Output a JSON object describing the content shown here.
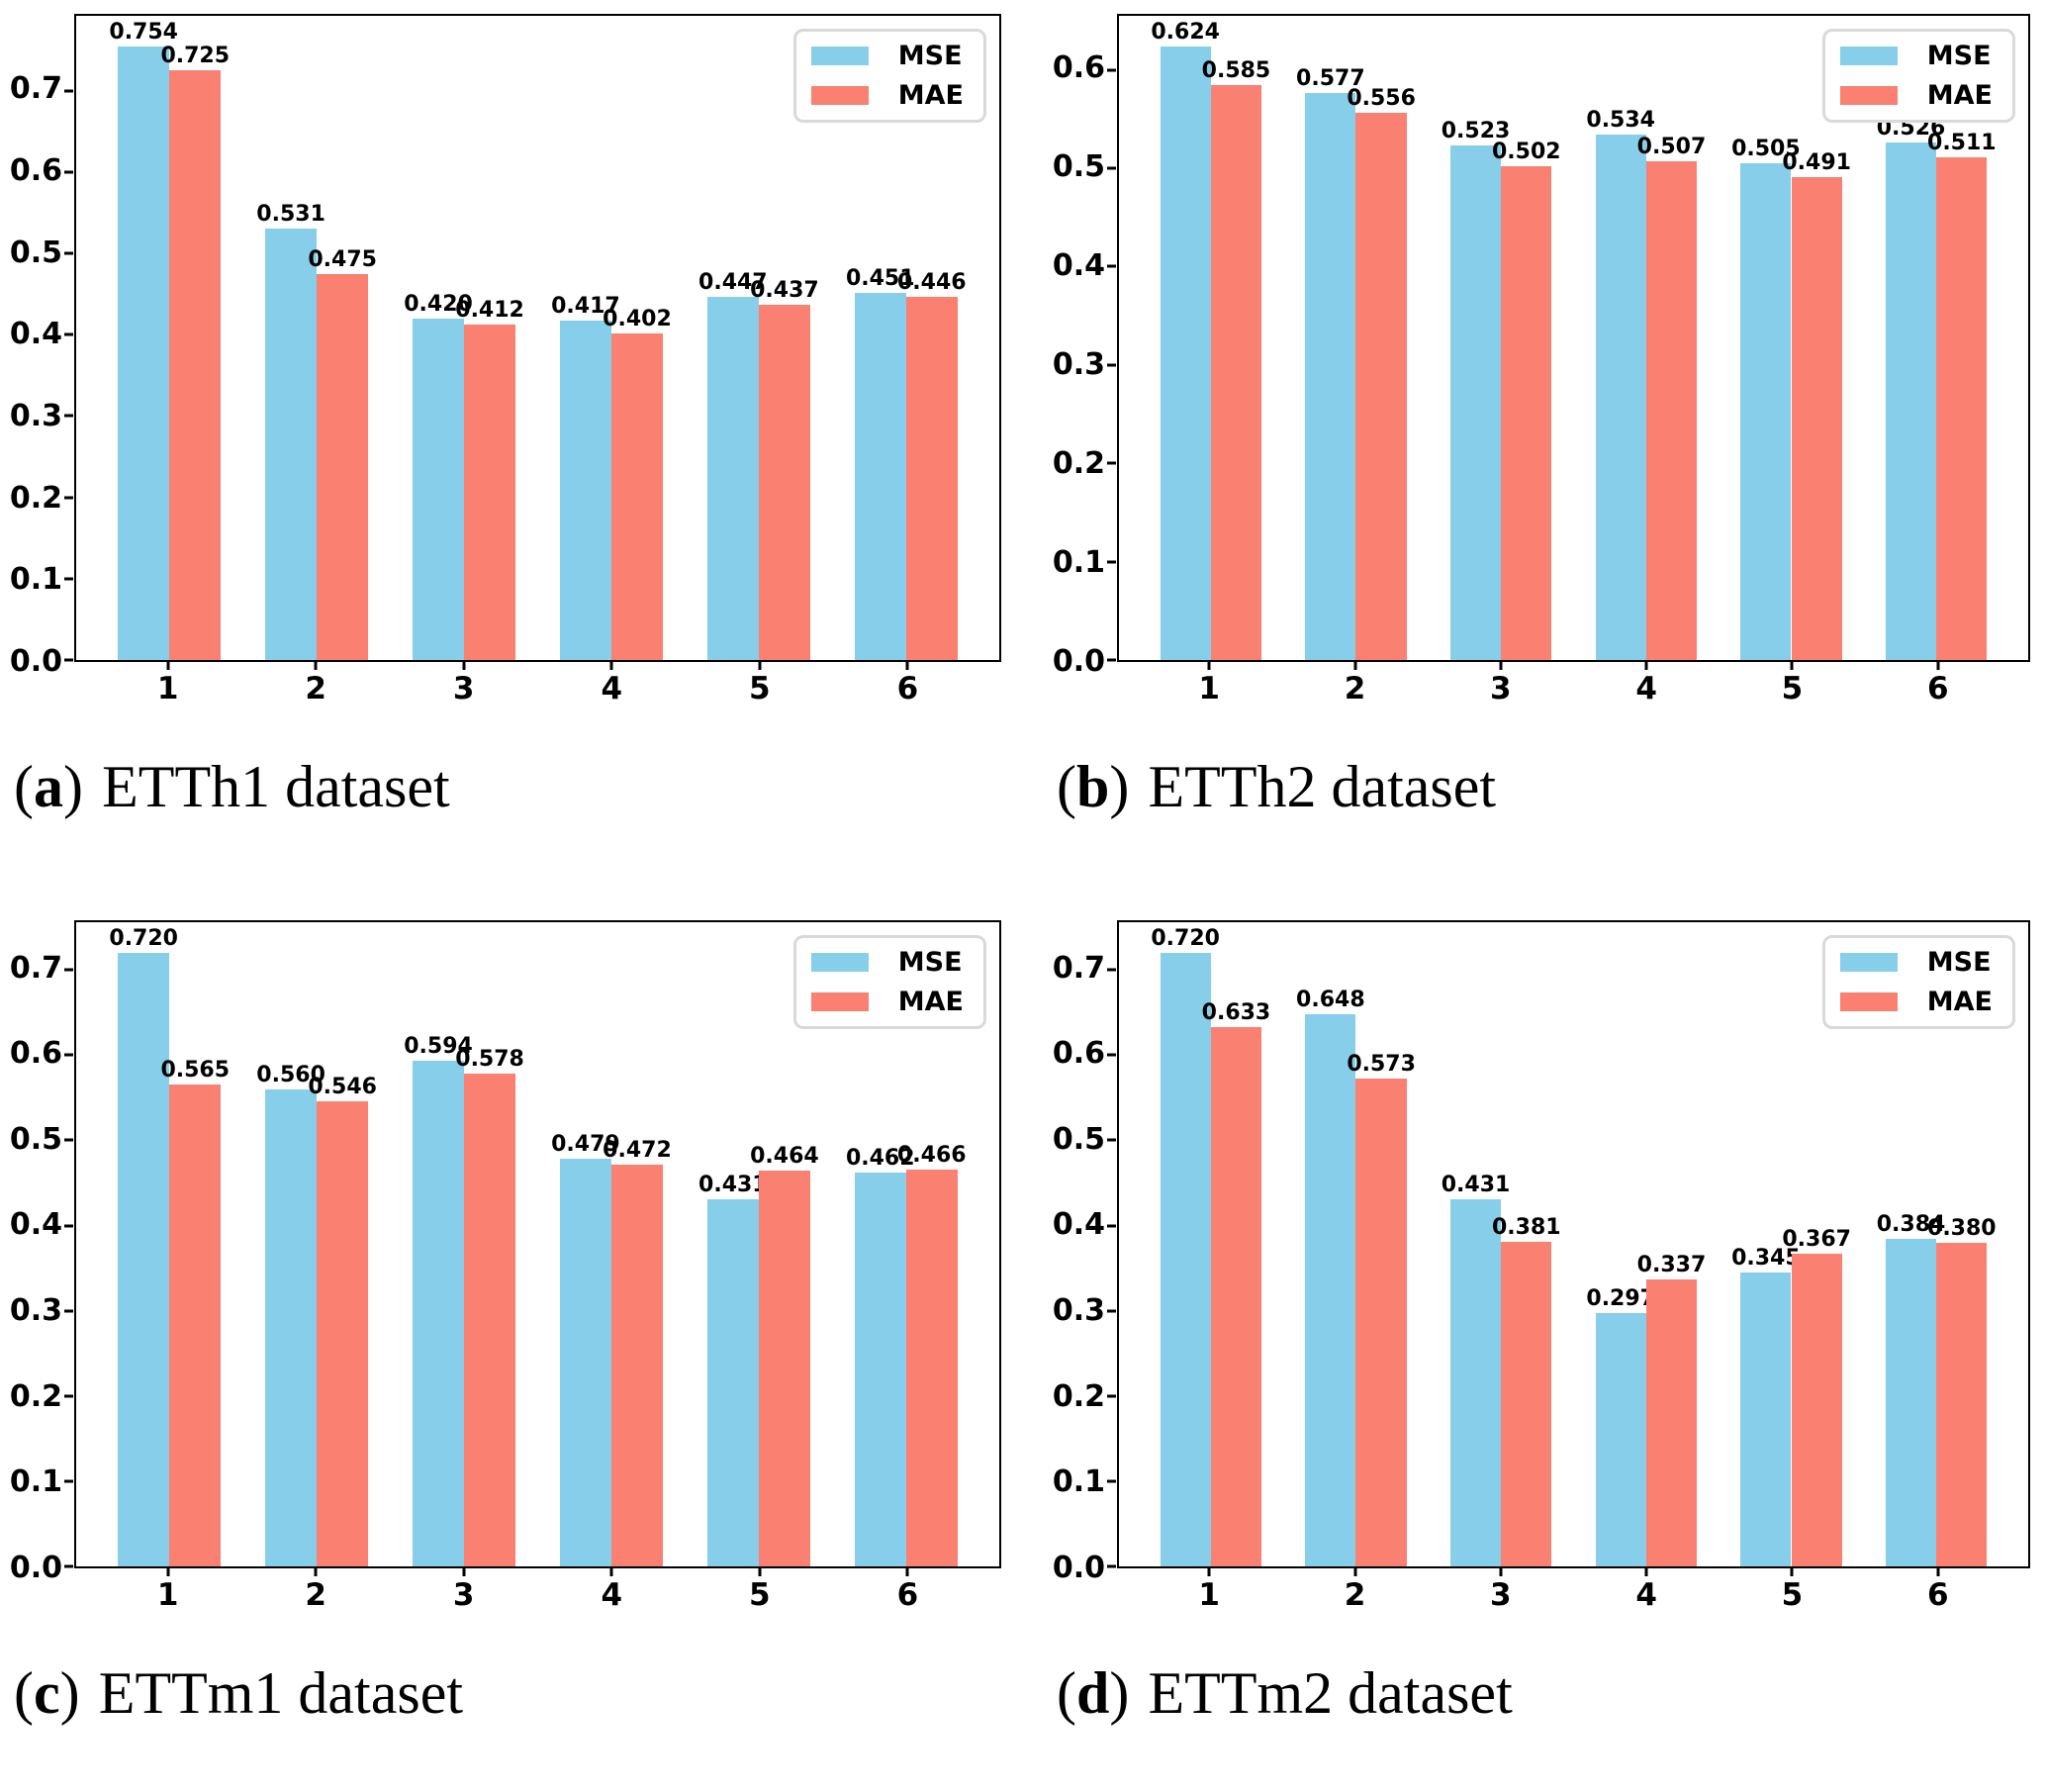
{
  "page": {
    "background": "#ffffff"
  },
  "colors": {
    "mse": "#87CEEB",
    "mae": "#FA8072",
    "axis": "#000000",
    "legend_border": "#D9D9D9"
  },
  "chart_data": [
    {
      "type": "bar",
      "caption": {
        "prefix": "(",
        "letter": "a",
        "suffix": ")",
        "title": "ETTh1 dataset"
      },
      "categories": [
        "1",
        "2",
        "3",
        "4",
        "5",
        "6"
      ],
      "series": [
        {
          "name": "MSE",
          "color": "#87CEEB",
          "values": [
            0.754,
            0.531,
            0.42,
            0.417,
            0.447,
            0.451
          ]
        },
        {
          "name": "MAE",
          "color": "#FA8072",
          "values": [
            0.725,
            0.475,
            0.412,
            0.402,
            0.437,
            0.446
          ]
        }
      ],
      "ylim": [
        0,
        0.792
      ],
      "yticks": [
        0.0,
        0.1,
        0.2,
        0.3,
        0.4,
        0.5,
        0.6,
        0.7
      ],
      "legend_position": "upper right",
      "grid": false,
      "value_labels": true
    },
    {
      "type": "bar",
      "caption": {
        "prefix": "(",
        "letter": "b",
        "suffix": ")",
        "title": "ETTh2 dataset"
      },
      "categories": [
        "1",
        "2",
        "3",
        "4",
        "5",
        "6"
      ],
      "series": [
        {
          "name": "MSE",
          "color": "#87CEEB",
          "values": [
            0.624,
            0.577,
            0.523,
            0.534,
            0.505,
            0.526
          ]
        },
        {
          "name": "MAE",
          "color": "#FA8072",
          "values": [
            0.585,
            0.556,
            0.502,
            0.507,
            0.491,
            0.511
          ]
        }
      ],
      "ylim": [
        0,
        0.655
      ],
      "yticks": [
        0.0,
        0.1,
        0.2,
        0.3,
        0.4,
        0.5,
        0.6
      ],
      "legend_position": "upper right",
      "grid": false,
      "value_labels": true
    },
    {
      "type": "bar",
      "caption": {
        "prefix": "(",
        "letter": "c",
        "suffix": ")",
        "title": "ETTm1 dataset"
      },
      "categories": [
        "1",
        "2",
        "3",
        "4",
        "5",
        "6"
      ],
      "series": [
        {
          "name": "MSE",
          "color": "#87CEEB",
          "values": [
            0.72,
            0.56,
            0.594,
            0.479,
            0.431,
            0.462
          ]
        },
        {
          "name": "MAE",
          "color": "#FA8072",
          "values": [
            0.565,
            0.546,
            0.578,
            0.472,
            0.464,
            0.466
          ]
        }
      ],
      "ylim": [
        0,
        0.756
      ],
      "yticks": [
        0.0,
        0.1,
        0.2,
        0.3,
        0.4,
        0.5,
        0.6,
        0.7
      ],
      "legend_position": "upper right",
      "grid": false,
      "value_labels": true
    },
    {
      "type": "bar",
      "caption": {
        "prefix": "(",
        "letter": "d",
        "suffix": ")",
        "title": "ETTm2 dataset"
      },
      "categories": [
        "1",
        "2",
        "3",
        "4",
        "5",
        "6"
      ],
      "series": [
        {
          "name": "MSE",
          "color": "#87CEEB",
          "values": [
            0.72,
            0.648,
            0.431,
            0.297,
            0.345,
            0.384
          ]
        },
        {
          "name": "MAE",
          "color": "#FA8072",
          "values": [
            0.633,
            0.573,
            0.381,
            0.337,
            0.367,
            0.38
          ]
        }
      ],
      "ylim": [
        0,
        0.756
      ],
      "yticks": [
        0.0,
        0.1,
        0.2,
        0.3,
        0.4,
        0.5,
        0.6,
        0.7
      ],
      "legend_position": "upper right",
      "grid": false,
      "value_labels": true
    }
  ]
}
